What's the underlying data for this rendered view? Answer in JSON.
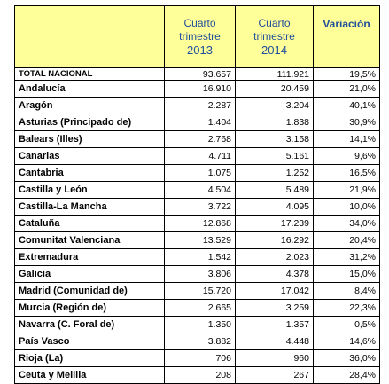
{
  "table": {
    "headers": {
      "col_2013": [
        "Cuarto",
        "trimestre",
        "2013"
      ],
      "col_2014": [
        "Cuarto",
        "trimestre",
        "2014"
      ],
      "col_variation": "Variación"
    },
    "rows": [
      {
        "region": "TOTAL NACIONAL",
        "q4_2013": "93.657",
        "q4_2014": "111.921",
        "variation": "19,5%"
      },
      {
        "region": "Andalucía",
        "q4_2013": "16.910",
        "q4_2014": "20.459",
        "variation": "21,0%"
      },
      {
        "region": "Aragón",
        "q4_2013": "2.287",
        "q4_2014": "3.204",
        "variation": "40,1%"
      },
      {
        "region": "Asturias (Principado de)",
        "q4_2013": "1.404",
        "q4_2014": "1.838",
        "variation": "30,9%"
      },
      {
        "region": "Balears (Illes)",
        "q4_2013": "2.768",
        "q4_2014": "3.158",
        "variation": "14,1%"
      },
      {
        "region": "Canarias",
        "q4_2013": "4.711",
        "q4_2014": "5.161",
        "variation": "9,6%"
      },
      {
        "region": "Cantabria",
        "q4_2013": "1.075",
        "q4_2014": "1.252",
        "variation": "16,5%"
      },
      {
        "region": "Castilla y León",
        "q4_2013": "4.504",
        "q4_2014": "5.489",
        "variation": "21,9%"
      },
      {
        "region": "Castilla-La Mancha",
        "q4_2013": "3.722",
        "q4_2014": "4.095",
        "variation": "10,0%"
      },
      {
        "region": "Cataluña",
        "q4_2013": "12.868",
        "q4_2014": "17.239",
        "variation": "34,0%"
      },
      {
        "region": "Comunitat Valenciana",
        "q4_2013": "13.529",
        "q4_2014": "16.292",
        "variation": "20,4%"
      },
      {
        "region": "Extremadura",
        "q4_2013": "1.542",
        "q4_2014": "2.023",
        "variation": "31,2%"
      },
      {
        "region": "Galicia",
        "q4_2013": "3.806",
        "q4_2014": "4.378",
        "variation": "15,0%"
      },
      {
        "region": "Madrid (Comunidad de)",
        "q4_2013": "15.720",
        "q4_2014": "17.042",
        "variation": "8,4%"
      },
      {
        "region": "Murcia (Región de)",
        "q4_2013": "2.665",
        "q4_2014": "3.259",
        "variation": "22,3%"
      },
      {
        "region": "Navarra (C. Foral de)",
        "q4_2013": "1.350",
        "q4_2014": "1.357",
        "variation": "0,5%"
      },
      {
        "region": "País Vasco",
        "q4_2013": "3.882",
        "q4_2014": "4.448",
        "variation": "14,6%"
      },
      {
        "region": "Rioja (La)",
        "q4_2013": "706",
        "q4_2014": "960",
        "variation": "36,0%"
      },
      {
        "region": "Ceuta y Melilla",
        "q4_2013": "208",
        "q4_2014": "267",
        "variation": "28,4%"
      }
    ]
  },
  "colors": {
    "header_background": "#ffff99",
    "header_text": "#1f4e9b",
    "border": "#000000"
  }
}
